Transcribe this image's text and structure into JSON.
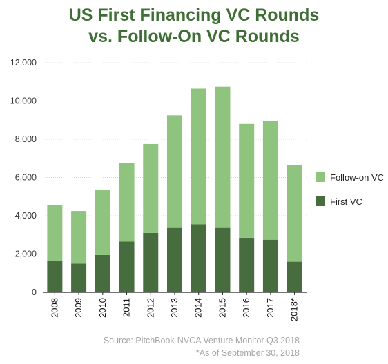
{
  "chart_data": {
    "type": "bar",
    "stacked": true,
    "title": [
      "US First Financing VC Rounds",
      "vs. Follow-On VC Rounds"
    ],
    "categories": [
      "2008",
      "2009",
      "2010",
      "2011",
      "2012",
      "2013",
      "2014",
      "2015",
      "2016",
      "2017",
      "2018*"
    ],
    "series": [
      {
        "name": "First VC",
        "color": "#476d3f",
        "values": [
          1650,
          1500,
          1950,
          2650,
          3100,
          3400,
          3550,
          3400,
          2850,
          2750,
          1600
        ]
      },
      {
        "name": "Follow-on VC",
        "color": "#8fc47e",
        "values": [
          2900,
          2750,
          3400,
          4100,
          4650,
          5850,
          7100,
          7350,
          5950,
          6200,
          5050
        ]
      }
    ],
    "totals": [
      4550,
      4250,
      5350,
      6750,
      7750,
      9250,
      10650,
      10750,
      8800,
      8950,
      6650
    ],
    "ylim": [
      0,
      12000
    ],
    "yticks": [
      "0",
      "2,000",
      "4,000",
      "6,000",
      "8,000",
      "10,000",
      "12,000"
    ],
    "grid": true,
    "legend": {
      "position": "right",
      "order": [
        "Follow-on VC",
        "First VC"
      ]
    }
  },
  "footer": {
    "source": "Source: PitchBook-NVCA Venture Monitor Q3 2018",
    "note": "*As of September 30, 2018"
  }
}
